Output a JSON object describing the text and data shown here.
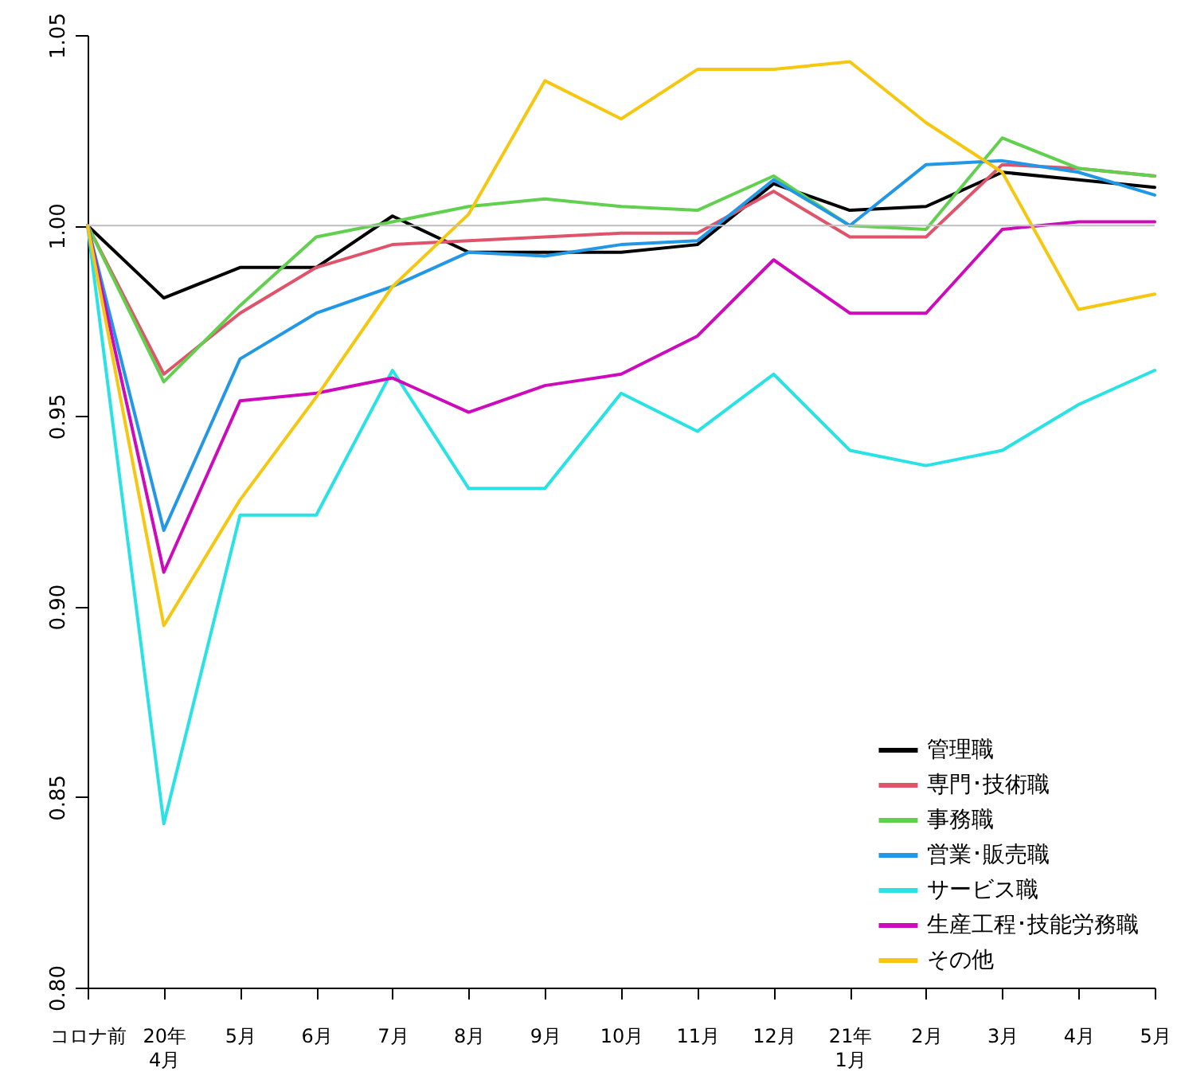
{
  "chart_data": {
    "type": "line",
    "categories": [
      "コロナ前",
      "20年\n4月",
      "5月",
      "6月",
      "7月",
      "8月",
      "9月",
      "10月",
      "11月",
      "12月",
      "21年\n1月",
      "2月",
      "3月",
      "4月",
      "5月"
    ],
    "series": [
      {
        "name": "管理職",
        "color": "#000000",
        "values": [
          1.0,
          0.981,
          0.989,
          0.989,
          1.0025,
          0.993,
          0.993,
          0.993,
          0.995,
          1.011,
          1.004,
          1.005,
          1.014,
          1.012,
          1.01
        ]
      },
      {
        "name": "専門･技術職",
        "color": "#df536b",
        "values": [
          1.0,
          0.961,
          0.977,
          0.989,
          0.995,
          0.996,
          0.997,
          0.998,
          0.998,
          1.009,
          0.997,
          0.997,
          1.016,
          1.015,
          1.013
        ]
      },
      {
        "name": "事務職",
        "color": "#61d04f",
        "values": [
          1.0,
          0.959,
          0.979,
          0.997,
          1.001,
          1.005,
          1.007,
          1.005,
          1.004,
          1.013,
          1.0,
          0.999,
          1.023,
          1.015,
          1.013
        ]
      },
      {
        "name": "営業･販売職",
        "color": "#2297e6",
        "values": [
          1.0,
          0.92,
          0.965,
          0.977,
          0.984,
          0.993,
          0.992,
          0.995,
          0.996,
          1.012,
          1.0,
          1.016,
          1.017,
          1.014,
          1.008
        ]
      },
      {
        "name": "サービス職",
        "color": "#28e2e5",
        "values": [
          1.0,
          0.843,
          0.924,
          0.924,
          0.962,
          0.931,
          0.931,
          0.956,
          0.946,
          0.961,
          0.941,
          0.937,
          0.941,
          0.953,
          0.962
        ]
      },
      {
        "name": "生産工程･技能労務職",
        "color": "#cd0bbc",
        "values": [
          1.0,
          0.909,
          0.954,
          0.956,
          0.96,
          0.951,
          0.958,
          0.961,
          0.971,
          0.991,
          0.977,
          0.977,
          0.999,
          1.001,
          1.001
        ]
      },
      {
        "name": "その他",
        "color": "#f5c710",
        "values": [
          1.0,
          0.895,
          0.928,
          0.955,
          0.984,
          1.003,
          1.038,
          1.028,
          1.041,
          1.041,
          1.043,
          1.027,
          1.014,
          0.978,
          0.982
        ]
      }
    ],
    "ylim": [
      0.8,
      1.05
    ],
    "yticks": [
      {
        "value": 0.8,
        "label": "0.80"
      },
      {
        "value": 0.85,
        "label": "0.85"
      },
      {
        "value": 0.9,
        "label": "0.90"
      },
      {
        "value": 0.95,
        "label": "0.95"
      },
      {
        "value": 1.0,
        "label": "1.00"
      },
      {
        "value": 1.05,
        "label": "1.05"
      }
    ],
    "ref_lines": [
      {
        "axis": "y",
        "value": 1.0,
        "color": "#bebebe"
      }
    ],
    "legend": "bottom right",
    "grid": false,
    "marker": "none",
    "line_style": "solid"
  }
}
